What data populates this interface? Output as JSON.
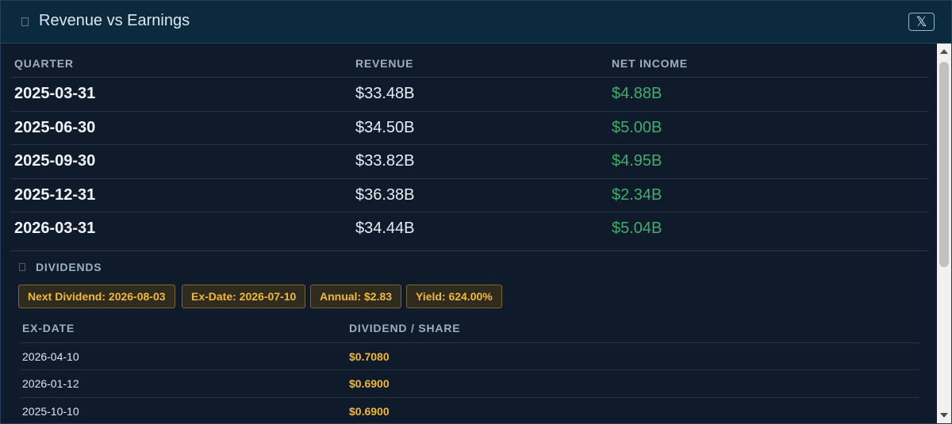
{
  "header": {
    "title": "Revenue vs Earnings",
    "close_label": "𝕏"
  },
  "earnings": {
    "columns": [
      "QUARTER",
      "REVENUE",
      "NET INCOME"
    ],
    "rows": [
      {
        "quarter": "2025-03-31",
        "revenue": "$33.48B",
        "net_income": "$4.88B"
      },
      {
        "quarter": "2025-06-30",
        "revenue": "$34.50B",
        "net_income": "$5.00B"
      },
      {
        "quarter": "2025-09-30",
        "revenue": "$33.82B",
        "net_income": "$4.95B"
      },
      {
        "quarter": "2025-12-31",
        "revenue": "$36.38B",
        "net_income": "$2.34B"
      },
      {
        "quarter": "2026-03-31",
        "revenue": "$34.44B",
        "net_income": "$5.04B"
      }
    ]
  },
  "dividends": {
    "title": "DIVIDENDS",
    "badges": [
      "Next Dividend: 2026-08-03",
      "Ex-Date: 2026-07-10",
      "Annual: $2.83",
      "Yield: 624.00%"
    ],
    "columns": [
      "EX-DATE",
      "DIVIDEND / SHARE"
    ],
    "rows": [
      {
        "ex_date": "2026-04-10",
        "amount": "$0.7080"
      },
      {
        "ex_date": "2026-01-12",
        "amount": "$0.6900"
      },
      {
        "ex_date": "2025-10-10",
        "amount": "$0.6900"
      }
    ]
  },
  "colors": {
    "positive": "#3fae6b",
    "accent": "#f0b93a",
    "header_bg": "#0c2a3d",
    "panel_bg": "#0f1a2b"
  },
  "icons": {
    "title_icon": "chart-icon",
    "dividends_icon": "dividend-icon",
    "close_icon": "x-logo-icon"
  }
}
